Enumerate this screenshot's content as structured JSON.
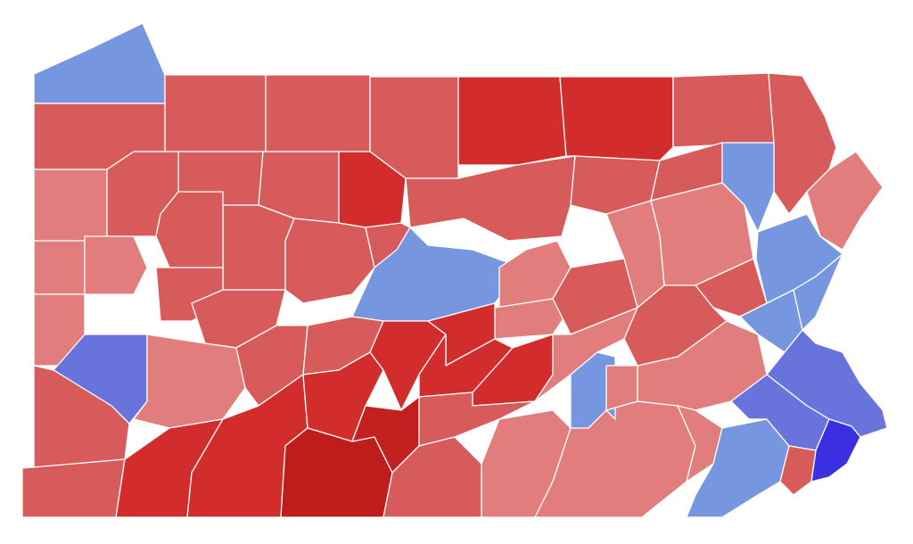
{
  "palette": {
    "r90": "#bf1c1c",
    "r80": "#c42020",
    "r70": "#d22c2c",
    "r60": "#d75b5b",
    "r50": "#e27d7d",
    "d50": "#7796e0",
    "d60": "#6874dc",
    "d80": "#3a30e2",
    "border": "#ffffff",
    "background": "#ffffff"
  },
  "counties": [
    {
      "shade": "d50"
    },
    {
      "shade": "r60"
    },
    {
      "shade": "r60"
    },
    {
      "shade": "r60"
    },
    {
      "shade": "r70"
    },
    {
      "shade": "r70"
    },
    {
      "shade": "r60"
    },
    {
      "shade": "r60"
    },
    {
      "shade": "r60"
    },
    {
      "shade": "r60"
    },
    {
      "shade": "r50"
    },
    {
      "shade": "r60"
    },
    {
      "shade": "r60"
    },
    {
      "shade": "r70"
    },
    {
      "shade": "r60"
    },
    {
      "shade": "r60"
    },
    {
      "shade": "r60"
    },
    {
      "shade": "r60"
    },
    {
      "shade": "d50"
    },
    {
      "shade": "r60"
    },
    {
      "shade": "r50"
    },
    {
      "shade": "r50"
    },
    {
      "shade": "r60"
    },
    {
      "shade": "r60"
    },
    {
      "shade": "r60"
    },
    {
      "shade": "r60"
    },
    {
      "shade": "d50"
    },
    {
      "shade": "r50"
    },
    {
      "shade": "r50"
    },
    {
      "shade": "r60"
    },
    {
      "shade": "r50"
    },
    {
      "shade": "r50"
    },
    {
      "shade": "d50"
    },
    {
      "shade": "r50"
    },
    {
      "shade": "r60"
    },
    {
      "shade": "r50"
    },
    {
      "shade": "d60"
    },
    {
      "shade": "r50"
    },
    {
      "shade": "r60"
    },
    {
      "shade": "r60"
    },
    {
      "shade": "r60"
    },
    {
      "shade": "r60"
    },
    {
      "shade": "r70"
    },
    {
      "shade": "r70"
    },
    {
      "shade": "r70"
    },
    {
      "shade": "r70"
    },
    {
      "shade": "r70"
    },
    {
      "shade": "r70"
    },
    {
      "shade": "r70"
    },
    {
      "shade": "r90"
    },
    {
      "shade": "r80"
    },
    {
      "shade": "r60"
    },
    {
      "shade": "r60"
    },
    {
      "shade": "r50"
    },
    {
      "shade": "r50"
    },
    {
      "shade": "r50"
    },
    {
      "shade": "d50"
    },
    {
      "shade": "r60"
    },
    {
      "shade": "r50"
    },
    {
      "shade": "r50"
    },
    {
      "shade": "r50"
    },
    {
      "shade": "d50"
    },
    {
      "shade": "d50"
    },
    {
      "shade": "d60"
    },
    {
      "shade": "d50"
    },
    {
      "shade": "d60"
    },
    {
      "shade": "d80"
    }
  ]
}
